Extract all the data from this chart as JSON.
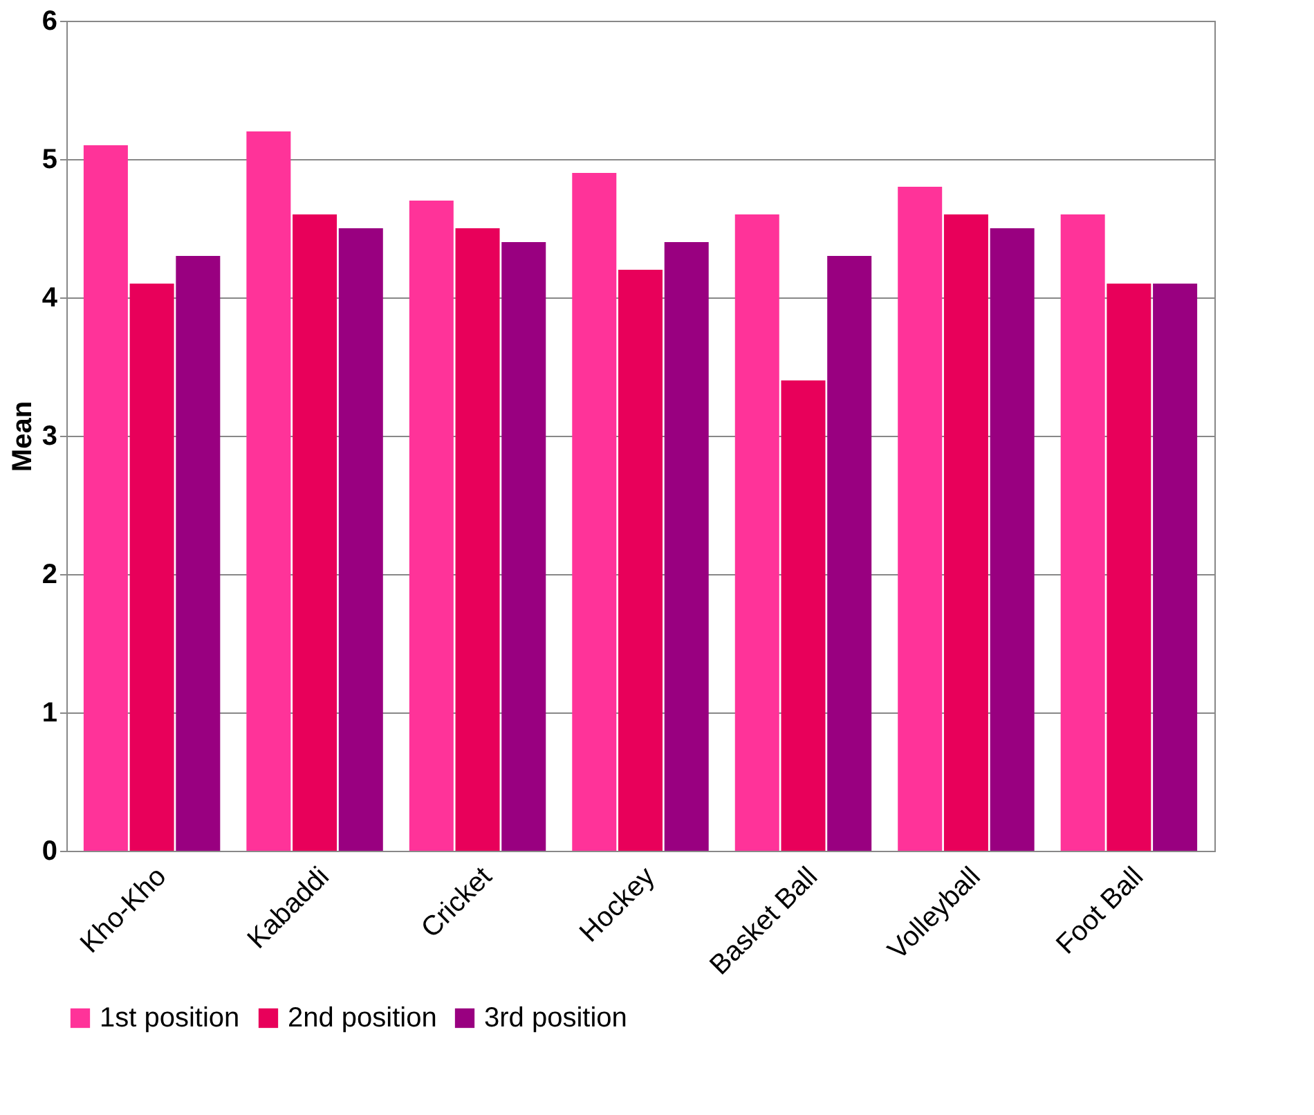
{
  "chart_data": {
    "type": "bar",
    "ylabel": "Mean",
    "categories": [
      "Kho-Kho",
      "Kabaddi",
      "Cricket",
      "Hockey",
      "Basket Ball",
      "Volleyball",
      "Foot Ball"
    ],
    "series": [
      {
        "name": "1st position",
        "color": "#ff3399",
        "values": [
          5.1,
          5.2,
          4.7,
          4.9,
          4.6,
          4.8,
          4.6
        ]
      },
      {
        "name": "2nd position",
        "color": "#e8005a",
        "values": [
          4.1,
          4.6,
          4.5,
          4.2,
          3.4,
          4.6,
          4.1
        ]
      },
      {
        "name": "3rd position",
        "color": "#990080",
        "values": [
          4.3,
          4.5,
          4.4,
          4.4,
          4.3,
          4.5,
          4.1
        ]
      }
    ],
    "ylim": [
      0,
      6
    ],
    "yticks": [
      0,
      1,
      2,
      3,
      4,
      5,
      6
    ],
    "grid": "y",
    "legend": "bottom"
  }
}
